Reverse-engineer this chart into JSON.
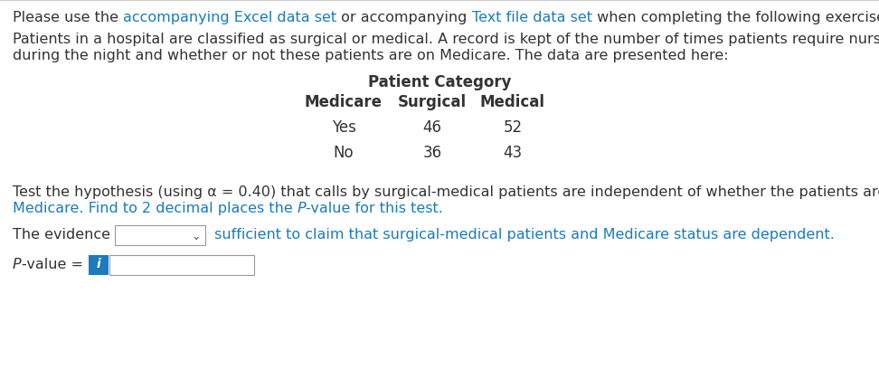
{
  "line1_plain": "Please use the ",
  "line1_link1": "accompanying Excel data set",
  "line1_mid": " or accompanying ",
  "line1_link2": "Text file data set",
  "line1_end": " when completing the following exercise.",
  "para2_line1": "Patients in a hospital are classified as surgical or medical. A record is kept of the number of times patients require nursing service",
  "para2_line2": "during the night and whether or not these patients are on Medicare. The data are presented here:",
  "table_header_center": "Patient Category",
  "table_col0": "Medicare",
  "table_col1": "Surgical",
  "table_col2": "Medical",
  "table_row1_label": "Yes",
  "table_row1_val1": "46",
  "table_row1_val2": "52",
  "table_row2_label": "No",
  "table_row2_val1": "36",
  "table_row2_val2": "43",
  "para3_line1": "Test the hypothesis (using α = 0.40) that calls by surgical-medical patients are independent of whether the patients are receiving",
  "para3_line2a": "Medicare. Find to 2 decimal places the ",
  "para3_italic": "P",
  "para3_line2b": "-value for this test.",
  "evidence_prefix": "The evidence",
  "evidence_suffix": " sufficient to claim that surgical-medical patients and Medicare status are dependent.",
  "link_color": "#1a7bbf",
  "text_color": "#333333",
  "teal_color": "#2e86c1",
  "background_color": "#ffffff",
  "info_bg": "#1a7bbf",
  "font_size_pt": 11.5,
  "table_font_size_pt": 12,
  "fig_width": 9.72,
  "fig_height": 4.19,
  "dpi": 100
}
